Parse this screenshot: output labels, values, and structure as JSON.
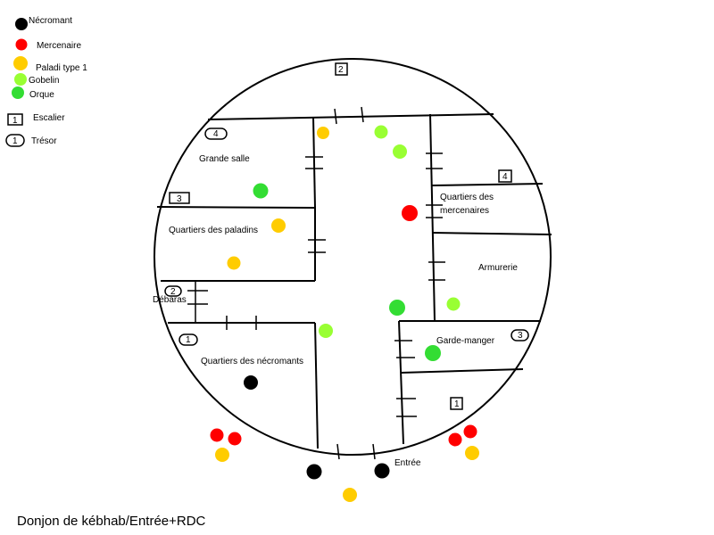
{
  "legend": {
    "necromant": "Nécromant",
    "mercenary": "Mercenaire",
    "paladin": "Paladi type 1",
    "goblin": "Gobelin",
    "orc": "Orque",
    "stair": "Escalier",
    "treasure": "Trésor",
    "stair_num": "1",
    "treasure_num": "1"
  },
  "colors": {
    "necromant": "#000000",
    "mercenary": "#ff0000",
    "paladin": "#ffcc00",
    "goblin": "#99ff33",
    "orc": "#33dd33"
  },
  "rooms": {
    "grande_salle": "Grande salle",
    "paladins": "Quartiers des paladins",
    "debarras": "Débaras",
    "necromants": "Quartiers des nécromants",
    "mercenaires_1": "Quartiers des",
    "mercenaires_2": "mercenaires",
    "armurerie": "Armurerie",
    "garde_manger": "Garde-manger",
    "entree": "Entrée"
  },
  "markers": {
    "stair_top": "2",
    "stair_grande": "3",
    "stair_merc": "4",
    "stair_garde": "1",
    "treasure_grande": "4",
    "treasure_debaras": "2",
    "treasure_necro": "1",
    "treasure_garde": "3"
  },
  "caption": "Donjon de kébhab/Entrée+RDC"
}
